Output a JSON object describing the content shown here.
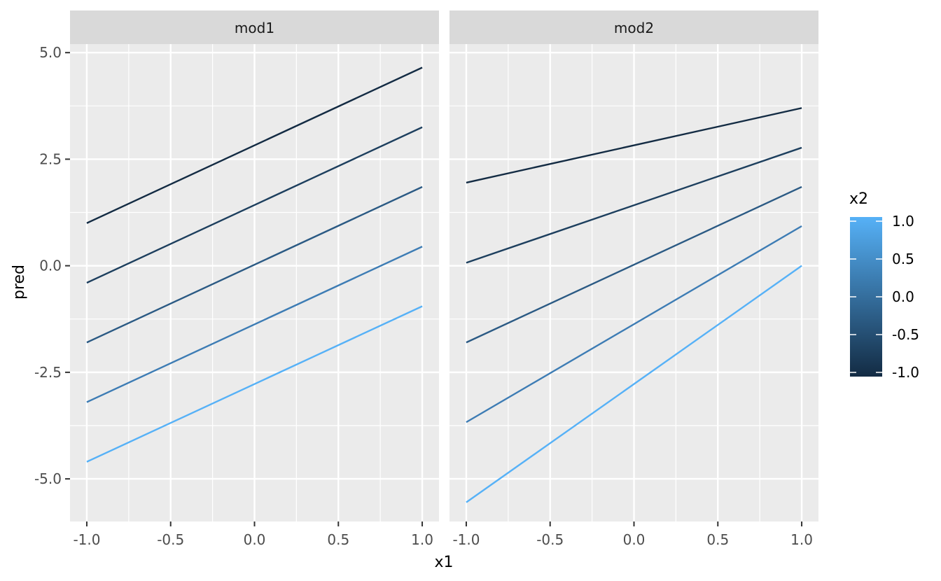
{
  "chart_data": {
    "type": "line",
    "xlabel": "x1",
    "ylabel": "pred",
    "xlim": [
      -1.1,
      1.1
    ],
    "ylim": [
      -6.0,
      5.2
    ],
    "x_ticks": [
      -1.0,
      -0.5,
      0.0,
      0.5,
      1.0
    ],
    "x_tick_labels": [
      "-1.0",
      "-0.5",
      "0.0",
      "0.5",
      "1.0"
    ],
    "y_ticks": [
      5.0,
      2.5,
      0.0,
      -2.5,
      -5.0
    ],
    "y_tick_labels": [
      "5.0",
      "2.5",
      "0.0",
      "-2.5",
      "-5.0"
    ],
    "grid": true,
    "legend": {
      "title": "x2",
      "type": "colorbar",
      "position": "right",
      "range": [
        -1.0,
        1.0
      ],
      "breaks": [
        1.0,
        0.5,
        0.0,
        -0.5,
        -1.0
      ],
      "labels": [
        "1.0",
        "0.5",
        "0.0",
        "-0.5",
        "-1.0"
      ],
      "low_color": "#132B43",
      "high_color": "#56B1F7"
    },
    "panels": [
      {
        "strip": "mod1",
        "series": [
          {
            "x2": -1.0,
            "color": "#132B43",
            "x": [
              -1.0,
              1.0
            ],
            "y": [
              1.0,
              4.65
            ]
          },
          {
            "x2": -0.5,
            "color": "#1D3F5E",
            "x": [
              -1.0,
              1.0
            ],
            "y": [
              -0.4,
              3.25
            ]
          },
          {
            "x2": 0.0,
            "color": "#2B5A84",
            "x": [
              -1.0,
              1.0
            ],
            "y": [
              -1.8,
              1.85
            ]
          },
          {
            "x2": 0.5,
            "color": "#3D7CB4",
            "x": [
              -1.0,
              1.0
            ],
            "y": [
              -3.2,
              0.45
            ]
          },
          {
            "x2": 1.0,
            "color": "#56B1F7",
            "x": [
              -1.0,
              1.0
            ],
            "y": [
              -4.6,
              -0.95
            ]
          }
        ]
      },
      {
        "strip": "mod2",
        "series": [
          {
            "x2": -1.0,
            "color": "#132B43",
            "x": [
              -1.0,
              1.0
            ],
            "y": [
              1.95,
              3.7
            ]
          },
          {
            "x2": -0.5,
            "color": "#1D3F5E",
            "x": [
              -1.0,
              1.0
            ],
            "y": [
              0.07,
              2.77
            ]
          },
          {
            "x2": 0.0,
            "color": "#2B5A84",
            "x": [
              -1.0,
              1.0
            ],
            "y": [
              -1.8,
              1.85
            ]
          },
          {
            "x2": 0.5,
            "color": "#3D7CB4",
            "x": [
              -1.0,
              1.0
            ],
            "y": [
              -3.67,
              0.93
            ]
          },
          {
            "x2": 1.0,
            "color": "#56B1F7",
            "x": [
              -1.0,
              1.0
            ],
            "y": [
              -5.55,
              0.0
            ]
          }
        ]
      }
    ]
  }
}
